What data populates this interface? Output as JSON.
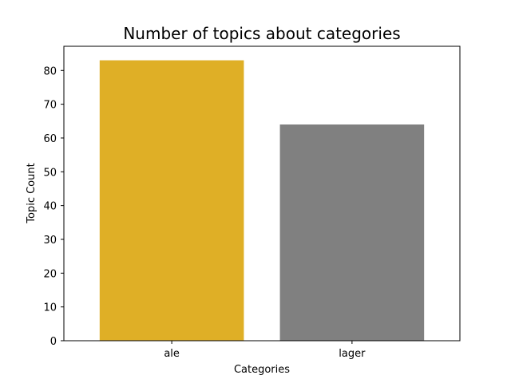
{
  "chart_data": {
    "type": "bar",
    "title": "Number of topics about categories",
    "xlabel": "Categories",
    "ylabel": "Topic Count",
    "categories": [
      "ale",
      "lager"
    ],
    "values": [
      83,
      64
    ],
    "colors": [
      "#DFAF26",
      "#808080"
    ],
    "ylim": [
      0,
      87.15
    ],
    "yticks": [
      0,
      10,
      20,
      30,
      40,
      50,
      60,
      70,
      80
    ],
    "grid": false,
    "legend": "none"
  }
}
